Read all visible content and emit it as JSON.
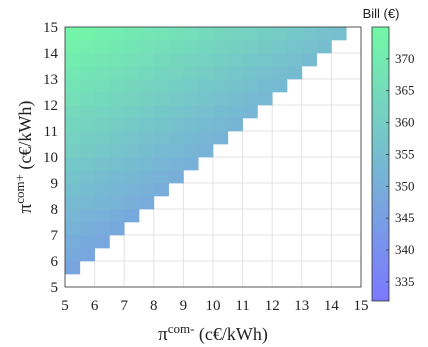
{
  "chart_data": {
    "type": "heatmap",
    "xlabel_main": "π",
    "xlabel_sup": "com-",
    "xlabel_unit": " (c€/kWh)",
    "ylabel_main": "π",
    "ylabel_sup": "com+",
    "ylabel_unit": " (c€/kWh)",
    "x_ticks": [
      "5",
      "6",
      "7",
      "8",
      "9",
      "10",
      "11",
      "12",
      "13",
      "14",
      "15"
    ],
    "y_ticks": [
      "5",
      "6",
      "7",
      "8",
      "9",
      "10",
      "11",
      "12",
      "13",
      "14",
      "15"
    ],
    "xlim": [
      5,
      15
    ],
    "ylim": [
      5,
      15
    ],
    "grid": true,
    "cell_step": 0.5,
    "cells_defined_where": "y > x",
    "value_model": "bill ≈ 340.3 + 3.0·y − 2.0·x",
    "value_corners": {
      "x5_y15": 375.3,
      "x5_y5.5": 346.8,
      "x14.5_y15": 356.3,
      "x14.5_y14.5": 354.8
    },
    "colorbar": {
      "title": "Bill (€)",
      "ticks": [
        "335",
        "340",
        "345",
        "350",
        "355",
        "360",
        "365",
        "370"
      ],
      "min": 332,
      "max": 375,
      "color_low": "#7b78ff",
      "color_high": "#72f9a6"
    }
  }
}
